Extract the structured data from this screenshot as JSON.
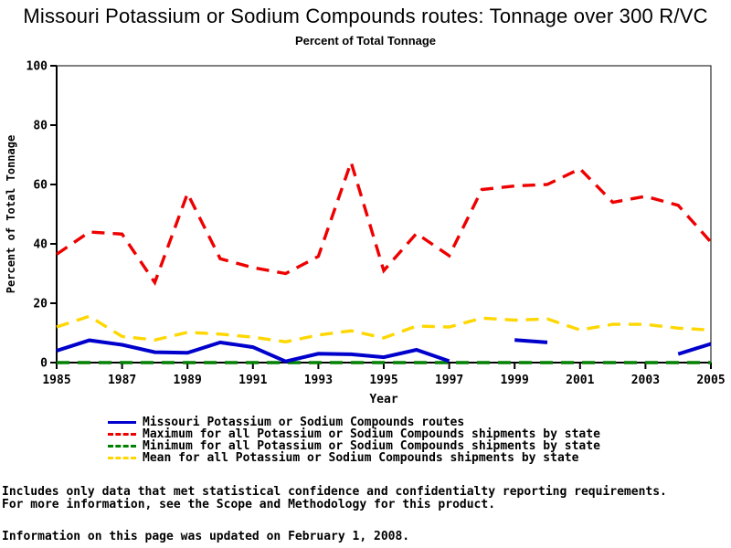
{
  "page": {
    "title": "Missouri Potassium or Sodium Compounds routes: Tonnage over 300 R/VC",
    "subtitle": "Percent of Total Tonnage"
  },
  "chart_data": {
    "type": "line",
    "title": "Missouri Potassium or Sodium Compounds routes: Tonnage over 300 R/VC",
    "subtitle": "Percent of Total Tonnage",
    "xlabel": "Year",
    "ylabel": "Percent of Total Tonnage",
    "xlim": [
      1985,
      2005
    ],
    "ylim": [
      0,
      100
    ],
    "xticks": [
      1985,
      1987,
      1989,
      1991,
      1993,
      1995,
      1997,
      1999,
      2001,
      2003,
      2005
    ],
    "yticks": [
      0,
      20,
      40,
      60,
      80,
      100
    ],
    "grid": false,
    "legend_position": "bottom",
    "x": [
      1985,
      1986,
      1987,
      1988,
      1989,
      1990,
      1991,
      1992,
      1993,
      1994,
      1995,
      1996,
      1997,
      1998,
      1999,
      2000,
      2001,
      2002,
      2003,
      2004,
      2005
    ],
    "series": [
      {
        "name": "Missouri Potassium or Sodium Compounds routes",
        "color": "#0000cc",
        "line_style": "solid",
        "values": [
          4.0,
          7.5,
          6.0,
          3.5,
          3.3,
          6.8,
          5.2,
          0.4,
          3.0,
          2.8,
          1.8,
          4.3,
          0.5,
          null,
          7.6,
          6.8,
          null,
          null,
          null,
          2.9,
          6.3
        ]
      },
      {
        "name": "Maximum for all Potassium or Sodium Compounds shipments by state",
        "color": "#ee0000",
        "line_style": "dashed",
        "values": [
          36.5,
          44.0,
          43.3,
          27.0,
          57.0,
          35.0,
          32.0,
          30.0,
          35.8,
          67.5,
          31.0,
          43.5,
          36.0,
          58.3,
          59.5,
          60.0,
          65.3,
          54.0,
          56.0,
          53.0,
          40.6
        ]
      },
      {
        "name": "Minimum for all Potassium or Sodium Compounds shipments by state",
        "color": "#008000",
        "line_style": "dashed",
        "values": [
          0,
          0,
          0,
          0,
          0,
          0,
          0,
          0,
          0,
          0,
          0,
          0,
          0,
          0,
          0,
          0,
          0,
          0,
          0,
          0,
          0
        ]
      },
      {
        "name": "Mean for all Potassium or Sodium Compounds shipments by state",
        "color": "#ffd700",
        "line_style": "dashed",
        "values": [
          12.0,
          15.6,
          8.8,
          7.6,
          10.2,
          9.6,
          8.6,
          7.0,
          9.3,
          10.7,
          8.3,
          12.3,
          12.0,
          15.0,
          14.3,
          14.7,
          11.0,
          12.9,
          12.9,
          11.6,
          11.0
        ]
      }
    ]
  },
  "footer": {
    "line1": "Includes only data that met statistical confidence and confidentialty reporting requirements.",
    "line2": "For more information, see the Scope and Methodology for this product.",
    "line3": "Information on this page was updated on February 1, 2008."
  }
}
